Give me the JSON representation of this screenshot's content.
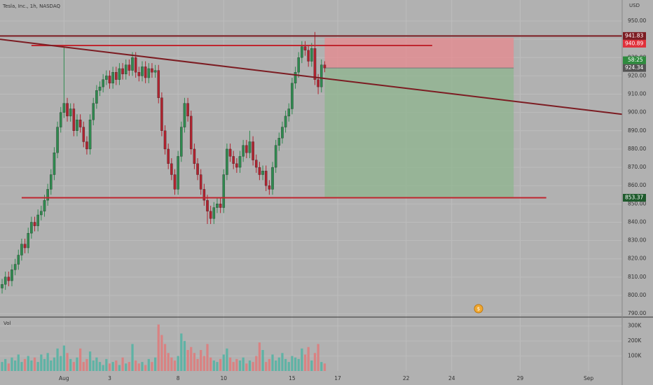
{
  "chart_data": {
    "type": "candlestick",
    "title": "Tesla, Inc., 1h, NASDAQ",
    "currency": "USD",
    "volume_label": "Vol",
    "countdown": "58:25",
    "colors": {
      "up": "#2f8a4f",
      "down": "#b0232f",
      "vol_up": "#5fb3a5",
      "vol_down": "#d98282",
      "background": "#b1b1b1"
    },
    "grid": true,
    "xlim": [
      -0.65,
      190.3
    ],
    "xticks": [
      {
        "value": 19,
        "label": "Aug"
      },
      {
        "value": 33,
        "label": "3"
      },
      {
        "value": 54,
        "label": "8"
      },
      {
        "value": 68,
        "label": "10"
      },
      {
        "value": 89,
        "label": "15"
      },
      {
        "value": 103,
        "label": "17"
      },
      {
        "value": 124,
        "label": "22"
      },
      {
        "value": 138,
        "label": "24"
      },
      {
        "value": 159,
        "label": "29"
      },
      {
        "value": 180,
        "label": "Sep"
      }
    ],
    "ylim": [
      788.5,
      961.5
    ],
    "yticks": [
      {
        "value": 950,
        "label": "950.00"
      },
      {
        "value": 940,
        "label": "940.00"
      },
      {
        "value": 930,
        "label": "930.00"
      },
      {
        "value": 920,
        "label": "920.00"
      },
      {
        "value": 910,
        "label": "910.00"
      },
      {
        "value": 900,
        "label": "900.00"
      },
      {
        "value": 890,
        "label": "890.00"
      },
      {
        "value": 880,
        "label": "880.00"
      },
      {
        "value": 870,
        "label": "870.00"
      },
      {
        "value": 860,
        "label": "860.00"
      },
      {
        "value": 850,
        "label": "850.00"
      },
      {
        "value": 840,
        "label": "840.00"
      },
      {
        "value": 830,
        "label": "830.00"
      },
      {
        "value": 820,
        "label": "820.00"
      },
      {
        "value": 810,
        "label": "810.00"
      },
      {
        "value": 800,
        "label": "800.00"
      },
      {
        "value": 790,
        "label": "790.00"
      }
    ],
    "y2lim": [
      0,
      350000
    ],
    "y2ticks": [
      {
        "value": 300000,
        "label": "300K"
      },
      {
        "value": 200000,
        "label": "200K"
      },
      {
        "value": 100000,
        "label": "100K"
      }
    ],
    "open": [
      804,
      806,
      810,
      808,
      814,
      817,
      822,
      828,
      826,
      834,
      840,
      838,
      844,
      846,
      852,
      858,
      866,
      878,
      892,
      900,
      905,
      898,
      902,
      890,
      896,
      892,
      884,
      880,
      896,
      905,
      912,
      914,
      918,
      920,
      916,
      922,
      918,
      924,
      921,
      926,
      923,
      930,
      922,
      920,
      925,
      919,
      924,
      922,
      923,
      908,
      890,
      880,
      872,
      866,
      858,
      876,
      892,
      905,
      898,
      880,
      872,
      866,
      858,
      852,
      846,
      842,
      848,
      850,
      848,
      866,
      880,
      876,
      872,
      870,
      876,
      882,
      878,
      884,
      874,
      870,
      866,
      868,
      860,
      858,
      870,
      882,
      886,
      892,
      898,
      902,
      916,
      922,
      930,
      936,
      934,
      928,
      935,
      918,
      914,
      926
    ],
    "high": [
      809,
      813,
      813,
      817,
      820,
      825,
      831,
      831,
      837,
      843,
      843,
      847,
      849,
      855,
      861,
      869,
      881,
      895,
      903,
      936,
      908,
      905,
      905,
      899,
      899,
      895,
      887,
      899,
      908,
      915,
      917,
      921,
      923,
      923,
      925,
      925,
      927,
      927,
      929,
      929,
      933,
      933,
      925,
      928,
      928,
      927,
      927,
      926,
      926,
      911,
      893,
      883,
      875,
      869,
      879,
      895,
      908,
      908,
      901,
      883,
      875,
      869,
      861,
      855,
      849,
      851,
      853,
      853,
      869,
      883,
      883,
      879,
      875,
      879,
      885,
      885,
      890,
      887,
      877,
      873,
      871,
      871,
      863,
      873,
      885,
      889,
      895,
      901,
      905,
      919,
      925,
      933,
      939,
      939,
      937,
      938,
      944,
      921,
      929,
      928
    ],
    "low": [
      801,
      803,
      805,
      805,
      811,
      814,
      819,
      823,
      823,
      831,
      835,
      835,
      841,
      843,
      849,
      855,
      863,
      875,
      889,
      897,
      895,
      895,
      887,
      887,
      889,
      881,
      877,
      877,
      893,
      902,
      909,
      911,
      915,
      913,
      913,
      915,
      915,
      918,
      918,
      920,
      920,
      919,
      917,
      917,
      916,
      916,
      919,
      919,
      905,
      887,
      877,
      869,
      863,
      855,
      855,
      873,
      889,
      895,
      877,
      869,
      863,
      855,
      849,
      839,
      839,
      839,
      845,
      845,
      845,
      863,
      873,
      869,
      867,
      867,
      873,
      875,
      875,
      871,
      867,
      863,
      863,
      857,
      855,
      855,
      867,
      879,
      883,
      889,
      895,
      899,
      913,
      919,
      927,
      931,
      925,
      925,
      915,
      910,
      911,
      922
    ],
    "close": [
      806,
      810,
      808,
      814,
      817,
      822,
      828,
      826,
      834,
      840,
      838,
      844,
      846,
      852,
      858,
      866,
      878,
      892,
      900,
      905,
      898,
      902,
      890,
      896,
      892,
      884,
      880,
      896,
      905,
      912,
      914,
      918,
      920,
      916,
      922,
      918,
      924,
      921,
      926,
      923,
      930,
      922,
      920,
      925,
      919,
      924,
      922,
      923,
      908,
      890,
      880,
      872,
      866,
      858,
      876,
      892,
      905,
      898,
      880,
      872,
      866,
      858,
      852,
      846,
      842,
      848,
      850,
      848,
      866,
      880,
      876,
      872,
      870,
      876,
      882,
      878,
      884,
      874,
      870,
      866,
      868,
      860,
      858,
      870,
      882,
      886,
      892,
      898,
      902,
      916,
      922,
      930,
      936,
      934,
      928,
      935,
      918,
      914,
      926,
      924.34
    ],
    "volume": [
      60000,
      80000,
      50000,
      90000,
      70000,
      110000,
      60000,
      80000,
      100000,
      70000,
      90000,
      60000,
      110000,
      80000,
      120000,
      70000,
      90000,
      150000,
      100000,
      170000,
      120000,
      80000,
      60000,
      90000,
      150000,
      60000,
      80000,
      130000,
      70000,
      90000,
      60000,
      40000,
      80000,
      50000,
      60000,
      70000,
      40000,
      90000,
      50000,
      60000,
      180000,
      70000,
      50000,
      60000,
      40000,
      80000,
      60000,
      90000,
      310000,
      240000,
      180000,
      120000,
      90000,
      70000,
      100000,
      250000,
      200000,
      140000,
      160000,
      120000,
      80000,
      140000,
      100000,
      180000,
      90000,
      70000,
      60000,
      80000,
      110000,
      150000,
      90000,
      60000,
      80000,
      70000,
      90000,
      50000,
      70000,
      60000,
      100000,
      190000,
      140000,
      60000,
      80000,
      110000,
      70000,
      90000,
      120000,
      80000,
      60000,
      100000,
      90000,
      80000,
      150000,
      110000,
      160000,
      70000,
      120000,
      180000,
      60000,
      50000
    ],
    "lines": [
      {
        "from": [
          -0.65,
          941.83
        ],
        "to": [
          190.3,
          941.83
        ],
        "color": "#7c1c22"
      },
      {
        "from": [
          9,
          936.6
        ],
        "to": [
          132,
          936.6
        ],
        "color": "#c0262f"
      },
      {
        "from": [
          -0.65,
          940
        ],
        "to": [
          190.3,
          899
        ],
        "color": "#7c1c22"
      },
      {
        "from": [
          6,
          853.37
        ],
        "to": [
          167,
          853.37
        ],
        "color": "#c0262f"
      }
    ],
    "position": {
      "start": 99,
      "end": 157,
      "stop": 940.89,
      "entry": 924.34,
      "target": 853.37,
      "risk_color": "#e88a8f",
      "reward_color": "#8fb58f"
    },
    "price_labels": [
      {
        "value": 941.83,
        "color": "#7c1c22"
      },
      {
        "value": 940.89,
        "color": "#e0303a"
      },
      {
        "value": 924.34,
        "color": "#555555"
      },
      {
        "value": 853.37,
        "color": "#1e5a2c"
      }
    ]
  }
}
